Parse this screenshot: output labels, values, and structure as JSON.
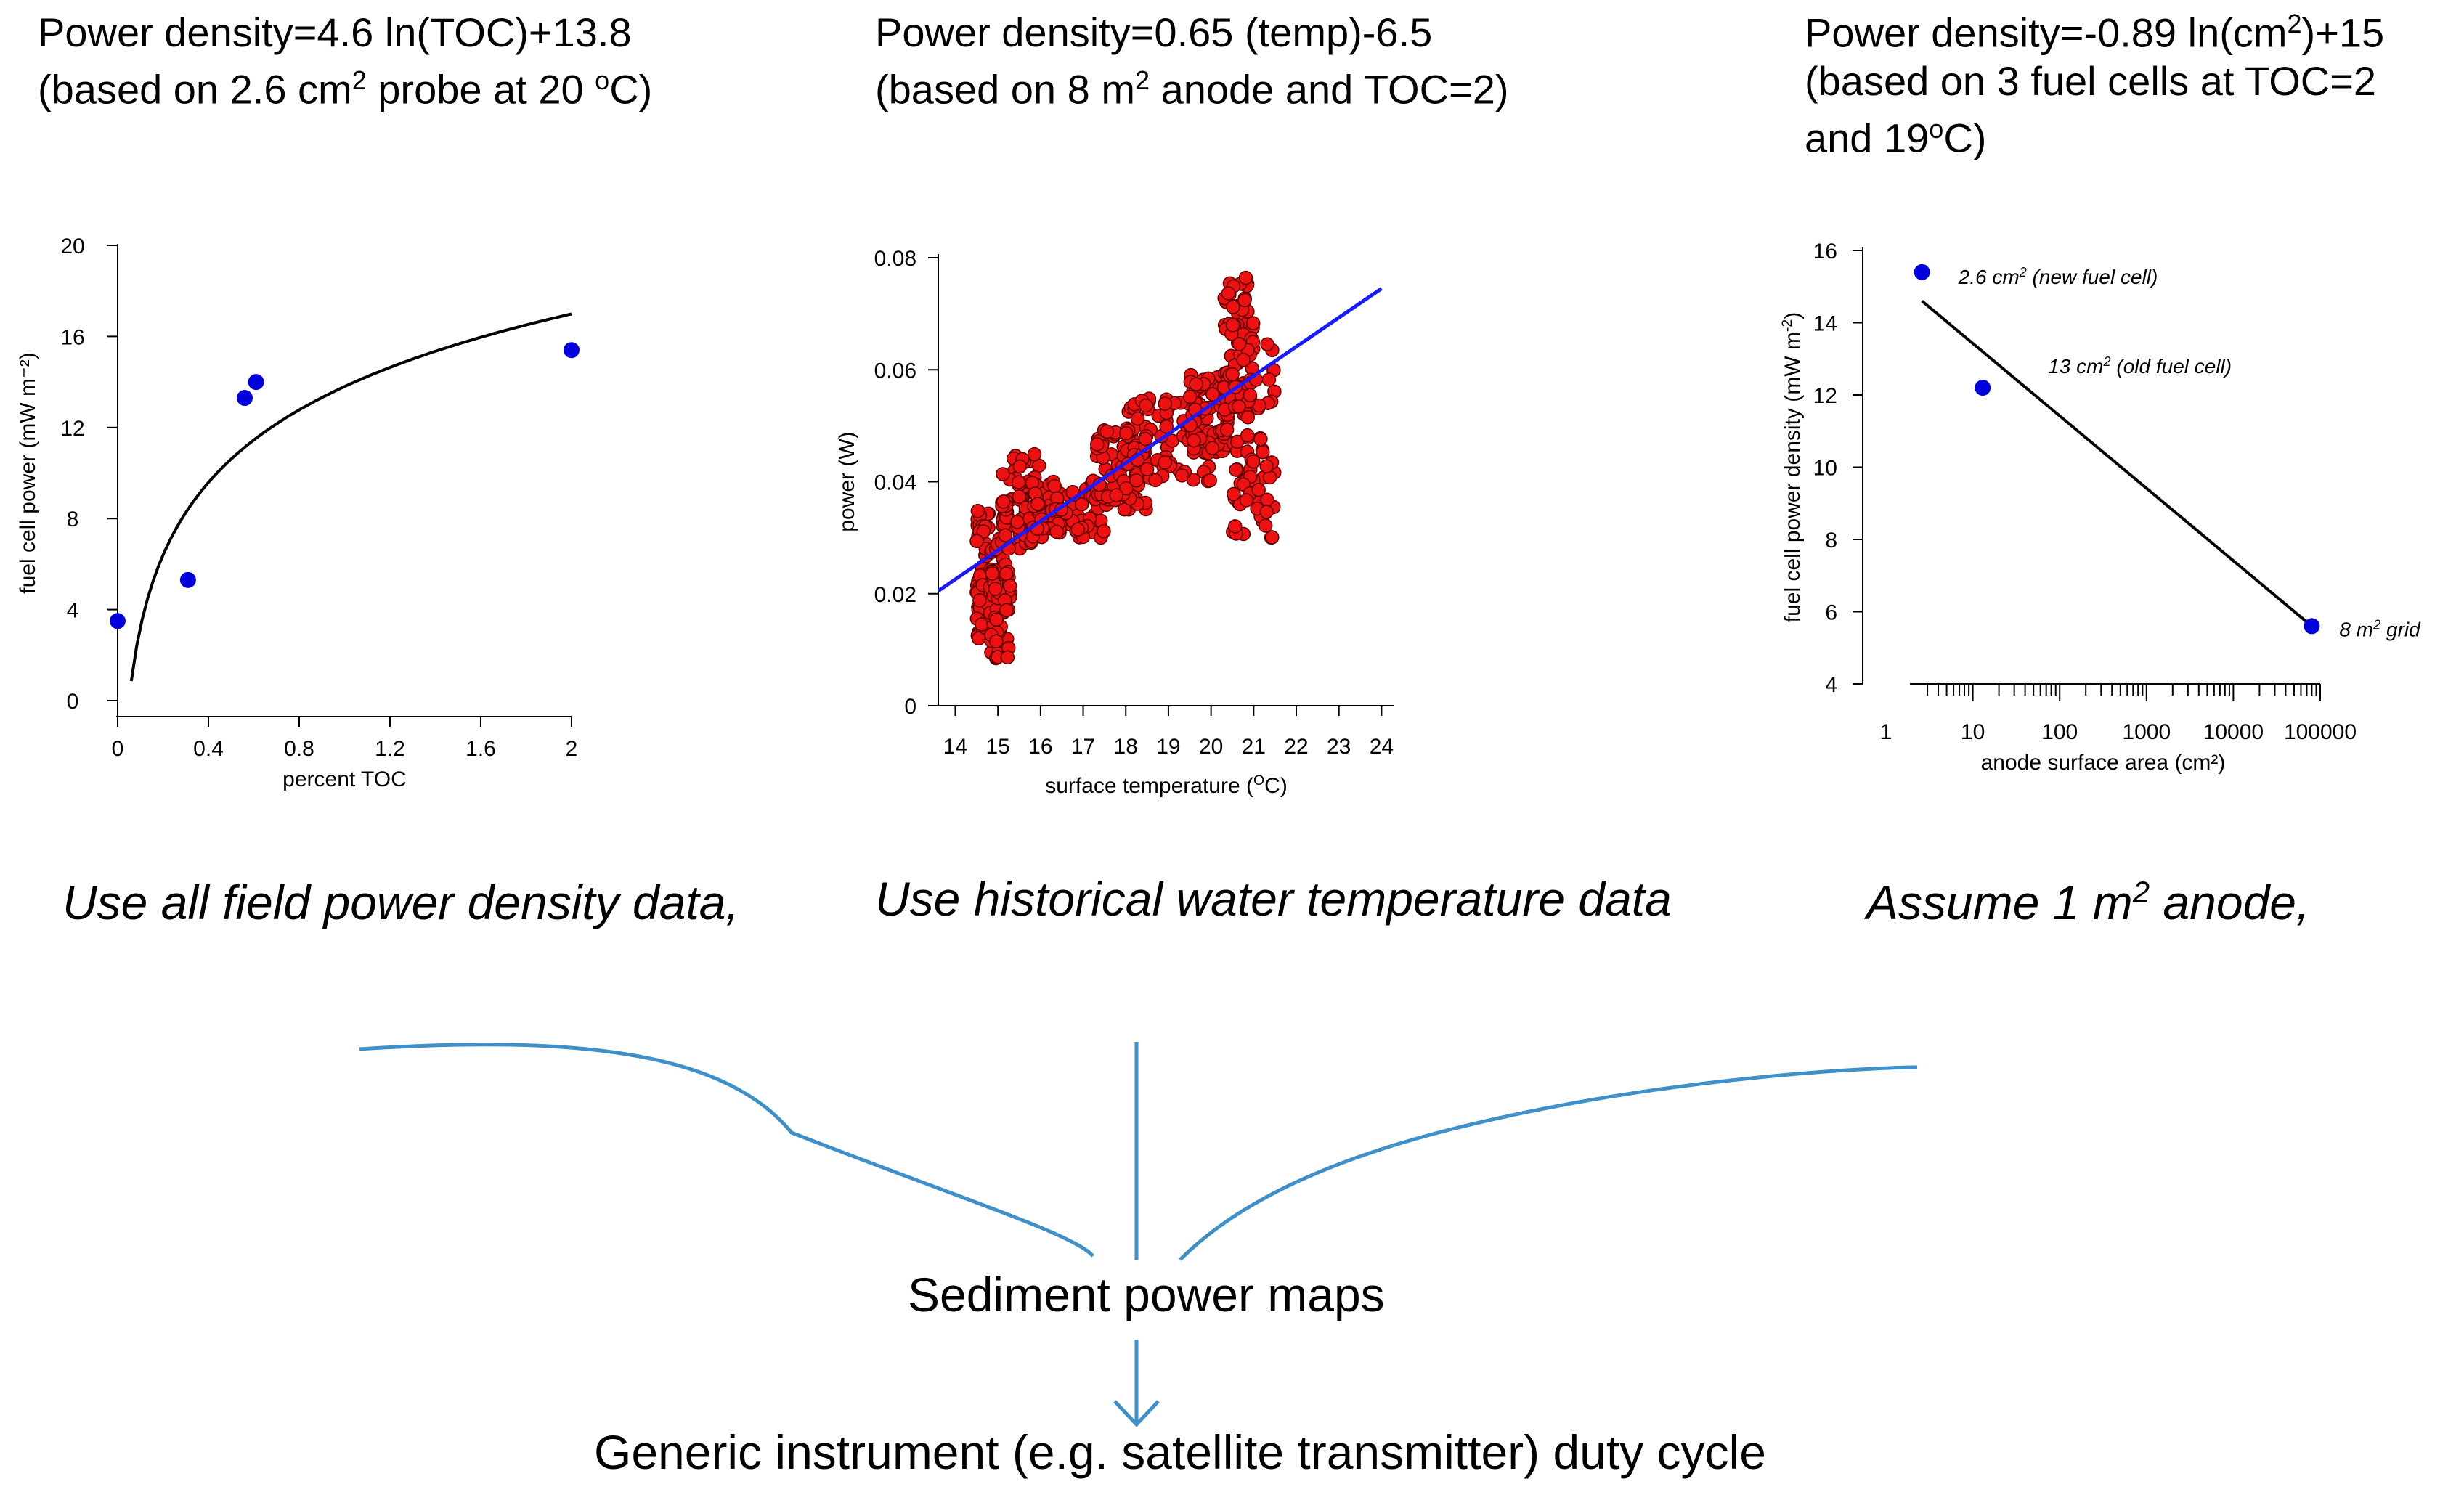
{
  "equations": {
    "eq1": {
      "line1": "Power density=4.6 ln(TOC)+13.8",
      "line2_pre": "(based on 2.6 cm",
      "line2_sup": "2",
      "line2_mid": " probe at 20 ",
      "line2_sup2": "o",
      "line2_post": "C)"
    },
    "eq2": {
      "line1": "Power density=0.65 (temp)-6.5",
      "line2_pre": "(based on 8 m",
      "line2_sup": "2",
      "line2_post": " anode and TOC=2)"
    },
    "eq3": {
      "line1_pre": "Power density=-0.89 ln(cm",
      "line1_sup": "2",
      "line1_post": ")+15",
      "line2": "(based on 3 fuel cells at TOC=2",
      "line3_pre": "and 19",
      "line3_sup": "o",
      "line3_post": "C)"
    }
  },
  "captions": {
    "c1": "Use all field power density data,",
    "c2": "Use historical water temperature data",
    "c3_pre": "Assume 1 m",
    "c3_sup": "2",
    "c3_post": " anode,"
  },
  "flow": {
    "maps": "Sediment power maps",
    "duty": "Generic instrument (e.g. satellite transmitter) duty cycle"
  },
  "colors": {
    "point_blue": "#0000dd",
    "scatter_red": "#ee1111",
    "fit_blue": "#1a1aff",
    "arrow": "#3f8fc8"
  },
  "chart_data": [
    {
      "type": "scatter",
      "title": "",
      "xlabel": "percent TOC",
      "ylabel": "fuel cell power (mW m⁻²)",
      "xlim": [
        0,
        2
      ],
      "ylim": [
        0,
        20
      ],
      "xticks": [
        0,
        0.4,
        0.8,
        1.2,
        1.6,
        2
      ],
      "yticks": [
        0,
        4,
        8,
        12,
        16,
        20
      ],
      "points": [
        [
          0,
          3.5
        ],
        [
          0.31,
          5.3
        ],
        [
          0.56,
          13.3
        ],
        [
          0.61,
          14.0
        ],
        [
          2.0,
          15.4
        ]
      ],
      "fit": {
        "a": 4.6,
        "b": 13.8,
        "from": 0.06,
        "to": 2.0
      }
    },
    {
      "type": "scatter",
      "title": "",
      "xlabel": "surface temperature (",
      "xlabel_sup": "O",
      "xlabel_post": "C)",
      "ylabel": "power (W)",
      "xlim": [
        13.6,
        24.3
      ],
      "ylim": [
        0,
        0.08
      ],
      "xticks": [
        14,
        15,
        16,
        17,
        18,
        19,
        20,
        21,
        22,
        23,
        24
      ],
      "yticks": [
        0,
        0.02,
        0.04,
        0.06,
        0.08
      ],
      "segments": [
        {
          "x": [
            14.5,
            14.8
          ],
          "y": [
            0.012,
            0.035
          ]
        },
        {
          "x": [
            14.8,
            15.3
          ],
          "y": [
            0.008,
            0.03
          ]
        },
        {
          "x": [
            15.1,
            16.0
          ],
          "y": [
            0.028,
            0.045
          ]
        },
        {
          "x": [
            15.8,
            17.5
          ],
          "y": [
            0.03,
            0.04
          ]
        },
        {
          "x": [
            17.2,
            18.5
          ],
          "y": [
            0.035,
            0.05
          ]
        },
        {
          "x": [
            18.0,
            20.0
          ],
          "y": [
            0.04,
            0.055
          ]
        },
        {
          "x": [
            19.5,
            20.4
          ],
          "y": [
            0.045,
            0.06
          ]
        },
        {
          "x": [
            20.3,
            21.0
          ],
          "y": [
            0.052,
            0.077
          ]
        },
        {
          "x": [
            20.5,
            21.5
          ],
          "y": [
            0.03,
            0.065
          ]
        }
      ],
      "fit": {
        "x": [
          13.6,
          24.0
        ],
        "y": [
          0.0205,
          0.0745
        ]
      }
    },
    {
      "type": "scatter",
      "title": "",
      "xlabel": "anode surface area (cm²)",
      "ylabel": "fuel cell power density (mW m",
      "ylabel_sup": "-2",
      "ylabel_post": ")",
      "xscale": "log",
      "xlim": [
        1,
        100000
      ],
      "ylim": [
        4,
        16
      ],
      "xtick_labels": [
        "1",
        "10",
        "100",
        "1000",
        "10000",
        "100000"
      ],
      "yticks": [
        4,
        6,
        8,
        10,
        12,
        14,
        16
      ],
      "points": [
        [
          2.6,
          15.4
        ],
        [
          13,
          12.2
        ],
        [
          80000,
          5.6
        ]
      ],
      "fit": {
        "x": [
          2.6,
          80000
        ],
        "y": [
          14.6,
          5.6
        ]
      },
      "annotations": [
        {
          "pre": "2.6 cm",
          "sup": "2",
          "post": " (new fuel cell)"
        },
        {
          "pre": "13 cm",
          "sup": "2",
          "post": " (old fuel cell)"
        },
        {
          "pre": "8 m",
          "sup": "2",
          "post": " grid"
        }
      ]
    }
  ]
}
